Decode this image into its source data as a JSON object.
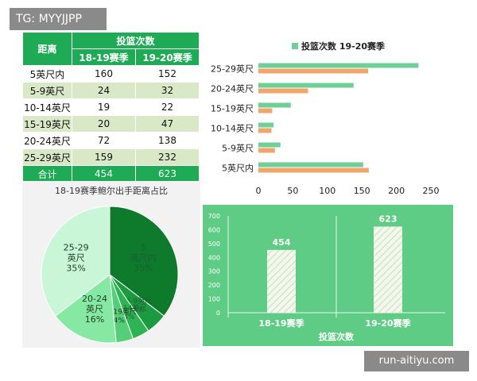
{
  "tag": "TG: MYYJJPP",
  "watermark": "run-aitiyu.com",
  "table": {
    "distance_header": "距离",
    "shots_header": "投篮次数",
    "season_a": "18-19赛季",
    "season_b": "19-20赛季",
    "rows": [
      {
        "dist": "5英尺内",
        "a": "160",
        "b": "152"
      },
      {
        "dist": "5-9英尺",
        "a": "24",
        "b": "32"
      },
      {
        "dist": "10-14英尺",
        "a": "19",
        "b": "22"
      },
      {
        "dist": "15-19英尺",
        "a": "20",
        "b": "47"
      },
      {
        "dist": "20-24英尺",
        "a": "72",
        "b": "138"
      },
      {
        "dist": "25-29英尺",
        "a": "159",
        "b": "232"
      }
    ],
    "total_label": "合计",
    "total_a": "454",
    "total_b": "623"
  },
  "chart_data": [
    {
      "type": "pie",
      "title": "18-19赛季鲍尔出手距离占比",
      "labels": [
        "5英尺内",
        "5-9英尺",
        "10-14英尺",
        "15-19英尺",
        "20-24英尺",
        "25-29英尺"
      ],
      "values": [
        35,
        5,
        4,
        4,
        16,
        35
      ],
      "percent_labels": [
        "35%",
        "5%",
        "4%",
        "4%",
        "16%",
        "35%"
      ],
      "colors": [
        "#0d7a2c",
        "#1b9a40",
        "#2fb455",
        "#55cf77",
        "#86e9a3",
        "#c8f6d6"
      ]
    },
    {
      "type": "bar",
      "orientation": "horizontal",
      "categories": [
        "25-29英尺",
        "20-24英尺",
        "15-19英尺",
        "10-14英尺",
        "5-9英尺",
        "5英尺内"
      ],
      "series": [
        {
          "name": "投篮次数 19-20赛季",
          "values": [
            232,
            138,
            47,
            22,
            32,
            152
          ],
          "color": "#6fcf97"
        },
        {
          "values": [
            159,
            72,
            20,
            19,
            24,
            160
          ],
          "color": "#f0a56a"
        }
      ],
      "xlim": [
        0,
        250
      ],
      "xticks": [
        "0",
        "50",
        "100",
        "150",
        "200",
        "250"
      ],
      "legend": "top"
    },
    {
      "type": "bar",
      "categories": [
        "18-19赛季",
        "19-20赛季"
      ],
      "values": [
        454,
        623
      ],
      "value_labels": [
        "454",
        "623"
      ],
      "xlabel": "投篮次数",
      "ylim": [
        0,
        700
      ],
      "yticks": [
        "0",
        "100",
        "200",
        "300",
        "400",
        "500",
        "600",
        "700"
      ]
    }
  ]
}
